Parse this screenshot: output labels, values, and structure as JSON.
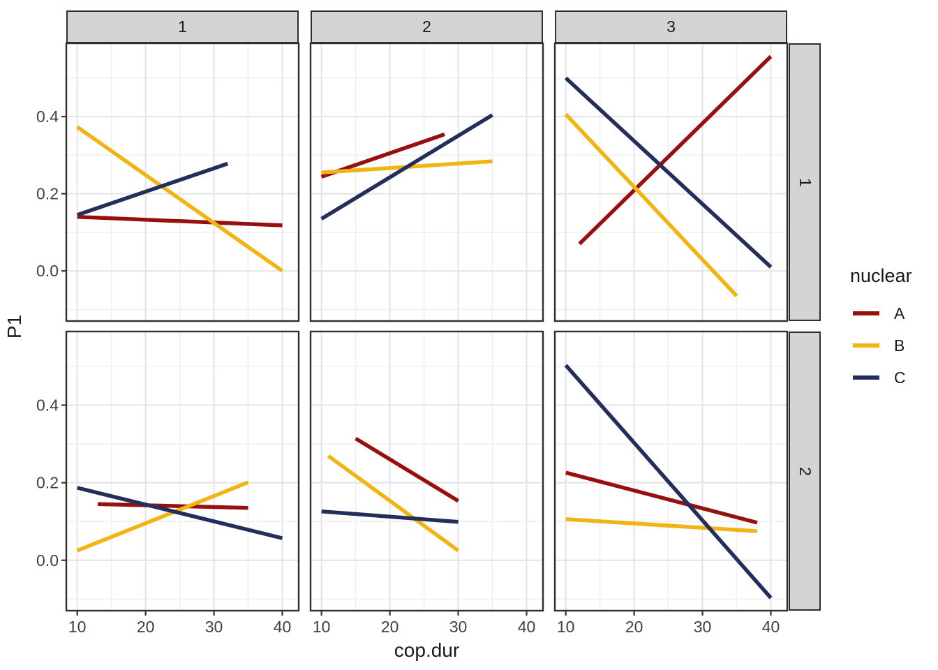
{
  "chart_data": {
    "type": "line",
    "title": "",
    "xlabel": "cop.dur",
    "ylabel": "P1",
    "facet": {
      "col_labels": [
        "1",
        "2",
        "3"
      ],
      "row_labels": [
        "1",
        "2"
      ]
    },
    "legend": {
      "title": "nuclear",
      "entries": [
        "A",
        "B",
        "C"
      ],
      "position": "right"
    },
    "series_meta": [
      {
        "name": "A",
        "color": "#98100E"
      },
      {
        "name": "B",
        "color": "#F2B413"
      },
      {
        "name": "C",
        "color": "#232E5C"
      }
    ],
    "axes": {
      "x_domain": [
        8.4,
        42.4
      ],
      "y_domain": [
        -0.13,
        0.59
      ],
      "x_ticks": [
        10,
        20,
        30,
        40
      ],
      "x_tick_labels": [
        "10",
        "20",
        "30",
        "40"
      ],
      "x_minor": [
        15,
        25,
        35
      ],
      "y_ticks": [
        0.0,
        0.2,
        0.4
      ],
      "y_tick_labels": [
        "0.0",
        "0.2",
        "0.4"
      ],
      "y_minor": [
        -0.1,
        0.1,
        0.3,
        0.5
      ],
      "grid": true
    },
    "panels": [
      {
        "row": "1",
        "col": "1",
        "lines": [
          {
            "series": "A",
            "x": [
              10,
              40
            ],
            "y": [
              0.14,
              0.118
            ]
          },
          {
            "series": "B",
            "x": [
              10,
              40
            ],
            "y": [
              0.373,
              0.0
            ]
          },
          {
            "series": "C",
            "x": [
              10,
              32
            ],
            "y": [
              0.145,
              0.278
            ]
          }
        ]
      },
      {
        "row": "1",
        "col": "2",
        "lines": [
          {
            "series": "A",
            "x": [
              10,
              28
            ],
            "y": [
              0.244,
              0.354
            ]
          },
          {
            "series": "B",
            "x": [
              10,
              35
            ],
            "y": [
              0.255,
              0.284
            ]
          },
          {
            "series": "C",
            "x": [
              10,
              35
            ],
            "y": [
              0.135,
              0.404
            ]
          }
        ]
      },
      {
        "row": "1",
        "col": "3",
        "lines": [
          {
            "series": "A",
            "x": [
              12,
              40
            ],
            "y": [
              0.07,
              0.556
            ]
          },
          {
            "series": "B",
            "x": [
              10,
              35
            ],
            "y": [
              0.406,
              -0.065
            ]
          },
          {
            "series": "C",
            "x": [
              10,
              40
            ],
            "y": [
              0.5,
              0.01
            ]
          }
        ]
      },
      {
        "row": "2",
        "col": "1",
        "lines": [
          {
            "series": "A",
            "x": [
              13,
              35
            ],
            "y": [
              0.145,
              0.135
            ]
          },
          {
            "series": "B",
            "x": [
              10,
              35
            ],
            "y": [
              0.025,
              0.201
            ]
          },
          {
            "series": "C",
            "x": [
              10,
              40
            ],
            "y": [
              0.187,
              0.057
            ]
          }
        ]
      },
      {
        "row": "2",
        "col": "2",
        "lines": [
          {
            "series": "A",
            "x": [
              15,
              30
            ],
            "y": [
              0.314,
              0.153
            ]
          },
          {
            "series": "B",
            "x": [
              11,
              30
            ],
            "y": [
              0.269,
              0.025
            ]
          },
          {
            "series": "C",
            "x": [
              10,
              30
            ],
            "y": [
              0.126,
              0.099
            ]
          }
        ]
      },
      {
        "row": "2",
        "col": "3",
        "lines": [
          {
            "series": "A",
            "x": [
              10,
              38
            ],
            "y": [
              0.226,
              0.097
            ]
          },
          {
            "series": "B",
            "x": [
              10,
              38
            ],
            "y": [
              0.106,
              0.075
            ]
          },
          {
            "series": "C",
            "x": [
              10,
              40
            ],
            "y": [
              0.503,
              -0.097
            ]
          }
        ]
      }
    ],
    "colors": {
      "strip_fill": "#D4D4D4",
      "panel_border": "#2F2F2F",
      "grid_major": "#E4E4E4",
      "grid_minor": "#F0F0F0",
      "background": "#FFFFFF",
      "tick_label": "#404040",
      "title_text": "#1A1A1A"
    }
  }
}
